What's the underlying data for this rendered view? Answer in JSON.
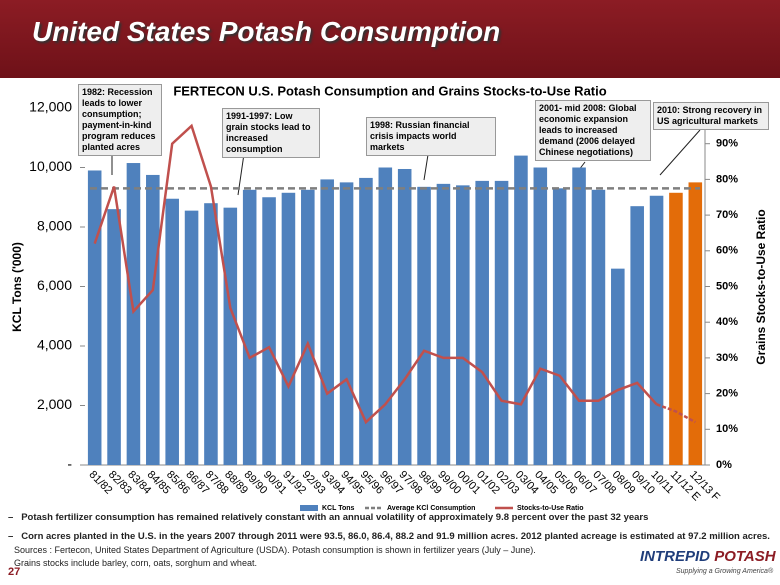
{
  "slide": {
    "title": "United States Potash Consumption",
    "bullets": [
      "Potash fertilizer consumption has remained relatively constant with an annual volatility of approximately 9.8 percent over the past 32 years",
      "Corn acres planted in the U.S. in the years 2007 through 2011 were 93.5, 86.0, 86.4, 88.2 and 91.9 million acres.  2012 planted acreage is estimated at 97.2 million acres."
    ],
    "sources": [
      "Sources : Fertecon, United States Department of Agriculture (USDA).  Potash consumption is shown in fertilizer years (July – June).",
      "Grains stocks include barley, corn, oats, sorghum and wheat."
    ],
    "page_number": "27",
    "logo": [
      "INTREPID",
      "POTASH"
    ],
    "tagline": "Supplying a Growing America®"
  },
  "chart_data": {
    "type": "bar",
    "title": "FERTECON U.S. Potash Consumption and Grains Stocks-to-Use Ratio",
    "ylabel": "KCL Tons ('000)",
    "y2label": "Grains Stocks-to-Use Ratio",
    "categories": [
      "81/82",
      "82/83",
      "83/84",
      "84/85",
      "85/86",
      "86/87",
      "87/88",
      "88/89",
      "89/90",
      "90/91",
      "91/92",
      "92/93",
      "93/94",
      "94/95",
      "95/96",
      "96/97",
      "97/98",
      "98/99",
      "99/00",
      "00/01",
      "01/02",
      "02/03",
      "03/04",
      "04/05",
      "05/06",
      "06/07",
      "07/08",
      "08/09",
      "09/10",
      "10/11",
      "11/12 E",
      "12/13 F"
    ],
    "series": [
      {
        "name": "KCL Tons",
        "type": "bar",
        "color": "#4f81bd",
        "colors": [
          "#4f81bd",
          "#4f81bd",
          "#4f81bd",
          "#4f81bd",
          "#4f81bd",
          "#4f81bd",
          "#4f81bd",
          "#4f81bd",
          "#4f81bd",
          "#4f81bd",
          "#4f81bd",
          "#4f81bd",
          "#4f81bd",
          "#4f81bd",
          "#4f81bd",
          "#4f81bd",
          "#4f81bd",
          "#4f81bd",
          "#4f81bd",
          "#4f81bd",
          "#4f81bd",
          "#4f81bd",
          "#4f81bd",
          "#4f81bd",
          "#4f81bd",
          "#4f81bd",
          "#4f81bd",
          "#4f81bd",
          "#4f81bd",
          "#4f81bd",
          "#e36c09",
          "#e36c09"
        ],
        "values": [
          9900,
          8600,
          10150,
          9750,
          8950,
          8550,
          8800,
          8650,
          9250,
          9000,
          9150,
          9250,
          9600,
          9500,
          9650,
          10000,
          9950,
          9350,
          9450,
          9400,
          9550,
          9550,
          10400,
          10000,
          9300,
          10000,
          9250,
          6600,
          8700,
          9050,
          9150,
          9500
        ]
      },
      {
        "name": "Stocks-to-Use Ratio",
        "type": "line",
        "axis": "y2",
        "color": "#c0504d",
        "dash_from": "10/11",
        "values": [
          62,
          78,
          43,
          49,
          90,
          95,
          78,
          44,
          30,
          33,
          22,
          34,
          20,
          24,
          12,
          17,
          24,
          32,
          30,
          30,
          26,
          18,
          17,
          27,
          25,
          18,
          18,
          21,
          23,
          17,
          15,
          12
        ]
      }
    ],
    "reference_line": {
      "name": "Average KCl Consumption",
      "value": 9300,
      "color": "#7f7f7f"
    },
    "ylim": [
      0,
      12000
    ],
    "yticks": [
      {
        "value": 0,
        "label": "-"
      },
      {
        "value": 2000,
        "label": "2,000"
      },
      {
        "value": 4000,
        "label": "4,000"
      },
      {
        "value": 6000,
        "label": "6,000"
      },
      {
        "value": 8000,
        "label": "8,000"
      },
      {
        "value": 10000,
        "label": "10,000"
      },
      {
        "value": 12000,
        "label": "12,000"
      }
    ],
    "y2lim": [
      0,
      100
    ],
    "y2ticks": [
      {
        "value": 0,
        "label": "0%"
      },
      {
        "value": 10,
        "label": "10%"
      },
      {
        "value": 20,
        "label": "20%"
      },
      {
        "value": 30,
        "label": "30%"
      },
      {
        "value": 40,
        "label": "40%"
      },
      {
        "value": 50,
        "label": "50%"
      },
      {
        "value": 60,
        "label": "60%"
      },
      {
        "value": 70,
        "label": "70%"
      },
      {
        "value": 80,
        "label": "80%"
      },
      {
        "value": 90,
        "label": "90%"
      }
    ],
    "annotations": [
      "1982: Recession leads to lower consumption; payment-in-kind program reduces planted acres",
      "1991-1997: Low grain stocks lead to increased consumption",
      "1998: Russian financial crisis impacts world markets",
      "2001- mid 2008: Global economic expansion leads to increased demand (2006 delayed Chinese negotiations)",
      "2010: Strong recovery in US agricultural markets"
    ]
  }
}
